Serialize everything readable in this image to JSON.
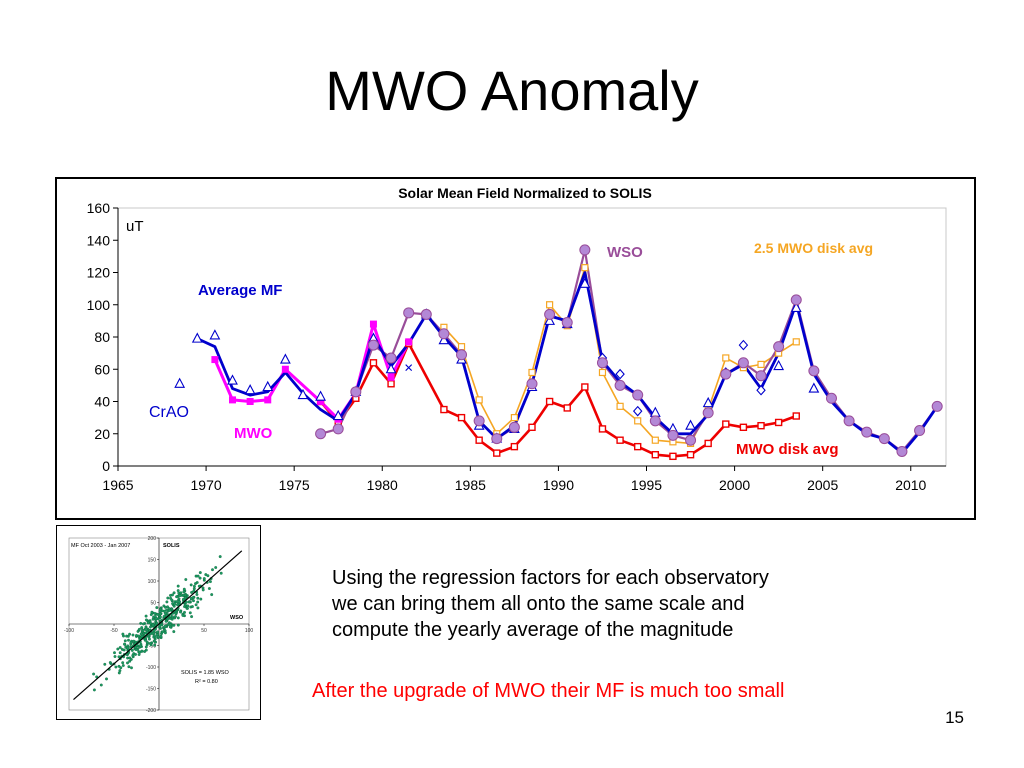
{
  "slide": {
    "title": "MWO Anomaly",
    "body_lines": [
      "Using the regression factors for each observatory",
      "we can bring them all onto the same scale and",
      "compute the yearly average of the magnitude"
    ],
    "note": "After the upgrade of MWO their MF is much too small",
    "number": "15"
  },
  "chart_data": [
    {
      "type": "line",
      "title": "Solar Mean Field Normalized to SOLIS",
      "ylabel": "uT",
      "xlabel": "",
      "xlim": [
        1965,
        2012
      ],
      "ylim": [
        0,
        160
      ],
      "xticks": [
        1965,
        1970,
        1975,
        1980,
        1985,
        1990,
        1995,
        2000,
        2005,
        2010
      ],
      "yticks": [
        0,
        20,
        40,
        60,
        80,
        100,
        120,
        140,
        160
      ],
      "grid": false,
      "colors": {
        "average": "#0000cc",
        "crao": "#0000cc",
        "mwo": "#ff00ff",
        "mwo_disk": "#ee0000",
        "mwo_disk_25": "#f5a623",
        "wso": "#994d99",
        "wso_marker": "#b388d6"
      },
      "annotations": [
        {
          "text": "Average MF",
          "color": "#0000cc"
        },
        {
          "text": "CrAO",
          "color": "#0000cc"
        },
        {
          "text": "MWO",
          "color": "#ff00ff"
        },
        {
          "text": "WSO",
          "color": "#994d99"
        },
        {
          "text": "2.5 MWO disk avg",
          "color": "#f5a623"
        },
        {
          "text": "MWO disk avg",
          "color": "#ee0000"
        }
      ],
      "series": {
        "average": {
          "x": [
            1969.5,
            1970.5,
            1971.5,
            1972.5,
            1973.5,
            1974.5,
            1975.5,
            1976.5,
            1977.5,
            1978.5,
            1979.5,
            1980.5,
            1981.5,
            1982.5,
            1983.5,
            1984.5,
            1985.5,
            1986.5,
            1987.5,
            1988.5,
            1989.5,
            1990.5,
            1991.5,
            1992.5,
            1993.5,
            1994.5,
            1995.5,
            1996.5,
            1997.5,
            1998.5,
            1999.5,
            2000.5,
            2001.5,
            2002.5,
            2003.5,
            2004.5,
            2005.5,
            2006.5,
            2007.5,
            2008.5,
            2009.5,
            2010.5,
            2011.5
          ],
          "y": [
            79,
            74,
            48,
            44,
            46,
            58,
            45,
            35,
            28,
            45,
            80,
            62,
            76,
            94,
            80,
            68,
            28,
            17,
            25,
            51,
            93,
            90,
            120,
            65,
            52,
            44,
            30,
            20,
            20,
            32,
            57,
            63,
            48,
            70,
            101,
            57,
            40,
            28,
            20,
            17,
            8,
            21,
            37
          ]
        },
        "crao": {
          "x": [
            1968.5,
            1969.5,
            1970.5,
            1971.5,
            1972.5,
            1973.5,
            1974.5,
            1975.5,
            1976.5,
            1977.5,
            1978.5,
            1979.5,
            1980.5,
            1981.5,
            1982.5,
            1983.5,
            1984.5,
            1985.5,
            1986.5,
            1987.5,
            1988.5,
            1989.5,
            1990.5,
            1991.5,
            1992.5,
            1993.5,
            1994.5,
            1995.5,
            1996.5,
            1997.5,
            1998.5,
            1999.5,
            2000.5,
            2001.5,
            2002.5,
            2003.5,
            2004.5
          ],
          "y": [
            51,
            79,
            81,
            53,
            47,
            49,
            66,
            44,
            43,
            31,
            46,
            79,
            60,
            61,
            94,
            78,
            66,
            25,
            17,
            23,
            49,
            90,
            88,
            113,
            67,
            57,
            34,
            33,
            23,
            25,
            39,
            58,
            75,
            47,
            62,
            98,
            48
          ],
          "markers": [
            "tri",
            "tri",
            "tri",
            "tri",
            "tri",
            "tri",
            "tri",
            "tri",
            "tri",
            "tri",
            "tri",
            "tri",
            "tri",
            "x",
            "tri",
            "tri",
            "tri",
            "tri",
            "tri",
            "tri",
            "tri",
            "tri",
            "tri",
            "tri",
            "dia",
            "dia",
            "dia",
            "tri",
            "tri",
            "tri",
            "tri",
            "dia",
            "dia",
            "dia",
            "tri",
            "tri",
            "tri"
          ]
        },
        "mwo": {
          "x": [
            1970.5,
            1971.5,
            1972.5,
            1973.5,
            1974.5,
            1976.5,
            1977.5,
            1978.5,
            1979.5,
            1980.5,
            1981.5
          ],
          "y": [
            66,
            41,
            40,
            41,
            60,
            40,
            29,
            45,
            88,
            55,
            77
          ]
        },
        "mwo_disk": {
          "x": [
            1976.5,
            1977.5,
            1978.5,
            1979.5,
            1980.5,
            1981.5,
            1983.5,
            1984.5,
            1985.5,
            1986.5,
            1987.5,
            1988.5,
            1989.5,
            1990.5,
            1991.5,
            1992.5,
            1993.5,
            1994.5,
            1995.5,
            1996.5,
            1997.5,
            1998.5,
            1999.5,
            2000.5,
            2001.5,
            2002.5,
            2003.5
          ],
          "y": [
            40,
            27,
            42,
            64,
            51,
            76,
            35,
            30,
            16,
            8,
            12,
            24,
            40,
            36,
            49,
            23,
            16,
            12,
            7,
            6,
            7,
            14,
            26,
            24,
            25,
            27,
            31
          ]
        },
        "mwo_disk_gap": {
          "x": [
            1981.5,
            1983.5
          ],
          "y": [
            76,
            35
          ]
        },
        "mwo_disk_25": {
          "x": [
            1983.5,
            1984.5,
            1985.5,
            1986.5,
            1987.5,
            1988.5,
            1989.5,
            1990.5,
            1991.5,
            1992.5,
            1993.5,
            1994.5,
            1995.5,
            1996.5,
            1997.5,
            1998.5,
            1999.5,
            2000.5,
            2001.5,
            2002.5,
            2003.5
          ],
          "y": [
            86,
            74,
            41,
            20,
            30,
            58,
            100,
            87,
            123,
            58,
            37,
            28,
            16,
            15,
            14,
            35,
            67,
            61,
            63,
            70,
            77
          ]
        },
        "wso": {
          "x": [
            1976.5,
            1977.5,
            1978.5,
            1979.5,
            1980.5,
            1981.5,
            1982.5,
            1983.5,
            1984.5,
            1985.5,
            1986.5,
            1987.5,
            1988.5,
            1989.5,
            1990.5,
            1991.5,
            1992.5,
            1993.5,
            1994.5,
            1995.5,
            1996.5,
            1997.5,
            1998.5,
            1999.5,
            2000.5,
            2001.5,
            2002.5,
            2003.5,
            2004.5,
            2005.5,
            2006.5,
            2007.5,
            2008.5,
            2009.5,
            2010.5,
            2011.5
          ],
          "y": [
            20,
            23,
            46,
            75,
            67,
            95,
            94,
            82,
            69,
            28,
            17,
            24,
            51,
            94,
            89,
            134,
            64,
            50,
            44,
            28,
            19,
            16,
            33,
            57,
            64,
            56,
            74,
            103,
            59,
            42,
            28,
            21,
            17,
            9,
            22,
            37
          ]
        }
      }
    },
    {
      "type": "scatter",
      "title": "MF Oct 2003 - Jan 2007",
      "ylabel": "SOLIS",
      "xlabel": "WSO",
      "xlim": [
        -100,
        100
      ],
      "ylim": [
        -200,
        200
      ],
      "xticks": [
        -100,
        -50,
        50,
        100
      ],
      "yticks": [
        -200,
        -150,
        -100,
        -50,
        50,
        100,
        150,
        200
      ],
      "fit_label": "SOLIS = 1.85  WSO",
      "r2_label": "R² = 0.80",
      "slope": 1.85,
      "point_color": "#1a9960",
      "point_count": 420
    }
  ]
}
